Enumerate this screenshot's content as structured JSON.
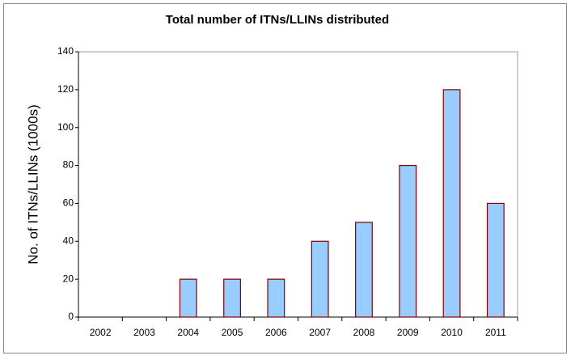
{
  "chart_data": {
    "type": "bar",
    "title": "Total number of ITNs/LLINs distributed",
    "ylabel": "No. of ITNs/LLINs (1000s)",
    "categories": [
      "2002",
      "2003",
      "2004",
      "2005",
      "2006",
      "2007",
      "2008",
      "2009",
      "2010",
      "2011"
    ],
    "values": [
      0,
      0,
      20,
      20,
      20,
      40,
      50,
      80,
      120,
      60
    ],
    "color": "#99ccff",
    "edgecolor": "#800000",
    "ylim": [
      0,
      140
    ],
    "yticks": [
      0,
      20,
      40,
      60,
      80,
      100,
      120,
      140
    ],
    "grid": false
  }
}
